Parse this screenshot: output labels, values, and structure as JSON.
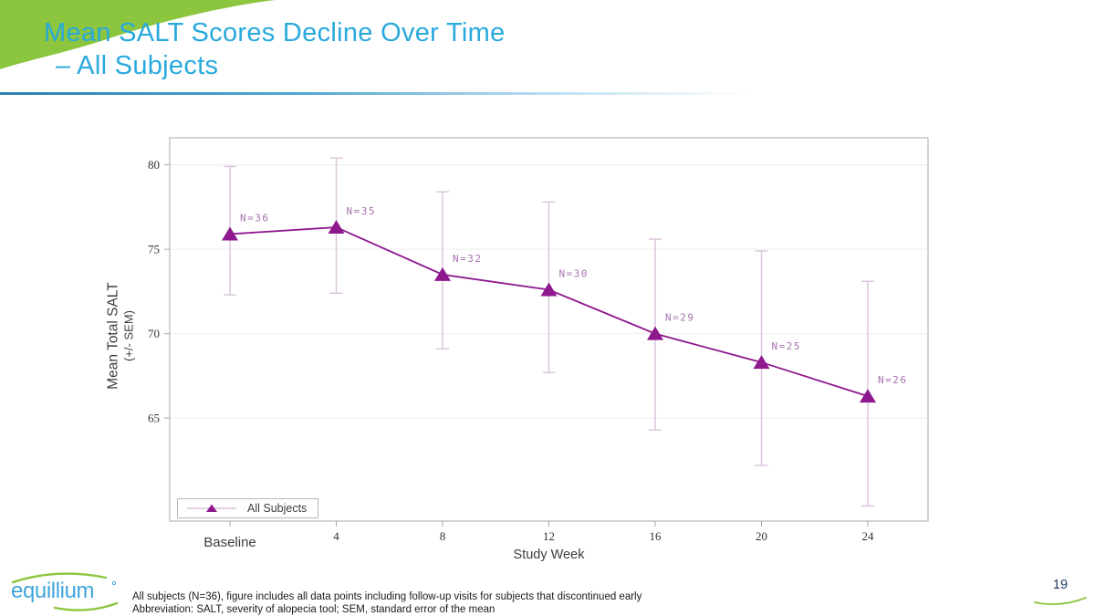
{
  "slide": {
    "title_line1": "Mean SALT Scores Decline Over Time",
    "title_line2": "– All Subjects",
    "footnote_line1": "All subjects (N=36), figure includes all data points including follow-up visits for subjects that discontinued early",
    "footnote_line2": "Abbreviation: SALT, severity of alopecia tool;  SEM, standard error of the mean",
    "page_number": "19",
    "logo_text": "equillium"
  },
  "colors": {
    "brand_green": "#8cc63e",
    "title_cyan": "#29a9dc",
    "logo_blue": "#41a5db",
    "page_navy": "#1e3a5f",
    "series": "#8e188e",
    "error_bar": "#d8c3da",
    "n_label": "#a671ae",
    "gridline": "#efecef",
    "axis_border": "#a9a9a9",
    "tick_text": "#333333",
    "label_text": "#3d3d3d"
  },
  "chart_data": {
    "type": "line",
    "title": "",
    "xlabel": "Study Week",
    "ylabel": "Mean Total SALT (+/- SEM)",
    "ylabel_lines": [
      "Mean Total SALT",
      "(+/- SEM)"
    ],
    "categories": [
      "Baseline",
      "4",
      "8",
      "12",
      "16",
      "20",
      "24"
    ],
    "series": [
      {
        "name": "All Subjects",
        "values": [
          75.9,
          76.3,
          73.5,
          72.6,
          70.0,
          68.3,
          66.3
        ],
        "upper": [
          79.9,
          80.4,
          78.4,
          77.8,
          75.6,
          74.9,
          73.1
        ],
        "lower": [
          72.3,
          72.4,
          69.1,
          67.7,
          64.3,
          62.2,
          59.8
        ],
        "n_labels": [
          "N=36",
          "N=35",
          "N=32",
          "N=30",
          "N=29",
          "N=25",
          "N=26"
        ]
      }
    ],
    "yticks": [
      65,
      70,
      75,
      80
    ],
    "ylim": [
      58.9,
      81.6
    ],
    "grid": "horizontal",
    "legend_position": "bottom-left-inside",
    "marker": "triangle-up",
    "error_bars": "SEM"
  }
}
